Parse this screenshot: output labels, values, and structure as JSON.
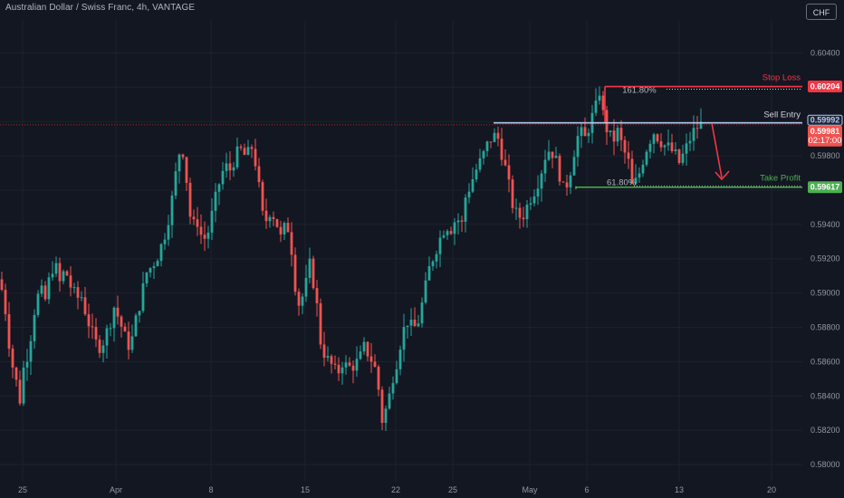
{
  "header": {
    "symbol_title": "Australian Dollar / Swiss Franc, 4h, VANTAGE",
    "currency_button": "CHF"
  },
  "colors": {
    "background": "#131722",
    "up": "#26a69a",
    "down": "#ef5350",
    "stop_loss": "#f23645",
    "sell_entry": "#b2c8f0",
    "take_profit": "#4caf50",
    "arrow": "#f23645"
  },
  "chart_data": {
    "type": "candlestick",
    "title": "Australian Dollar / Swiss Franc, 4h, VANTAGE",
    "ylim": [
      0.579,
      0.6055
    ],
    "y_ticks": [
      "0.60400",
      "0.60200",
      "0.60000",
      "0.59800",
      "0.59600",
      "0.59400",
      "0.59200",
      "0.59000",
      "0.58800",
      "0.58600",
      "0.58400",
      "0.58200",
      "0.58000"
    ],
    "x_ticks": [
      "25",
      "Apr",
      "8",
      "15",
      "22",
      "25",
      "May",
      "6",
      "13",
      "20"
    ],
    "grid": true,
    "price_path": [
      [
        0,
        0.5908
      ],
      [
        6,
        0.589
      ],
      [
        12,
        0.5862
      ],
      [
        18,
        0.5848
      ],
      [
        22,
        0.5838
      ],
      [
        26,
        0.5856
      ],
      [
        32,
        0.5868
      ],
      [
        38,
        0.589
      ],
      [
        44,
        0.5902
      ],
      [
        50,
        0.5896
      ],
      [
        56,
        0.5912
      ],
      [
        60,
        0.5918
      ],
      [
        66,
        0.5906
      ],
      [
        72,
        0.5914
      ],
      [
        78,
        0.5904
      ],
      [
        84,
        0.5897
      ],
      [
        90,
        0.5898
      ],
      [
        96,
        0.5886
      ],
      [
        102,
        0.5876
      ],
      [
        108,
        0.5868
      ],
      [
        114,
        0.5872
      ],
      [
        120,
        0.588
      ],
      [
        126,
        0.5892
      ],
      [
        132,
        0.5884
      ],
      [
        138,
        0.5874
      ],
      [
        144,
        0.5868
      ],
      [
        150,
        0.5884
      ],
      [
        156,
        0.5898
      ],
      [
        162,
        0.5912
      ],
      [
        168,
        0.5916
      ],
      [
        174,
        0.5922
      ],
      [
        180,
        0.593
      ],
      [
        186,
        0.5944
      ],
      [
        192,
        0.596
      ],
      [
        196,
        0.5978
      ],
      [
        200,
        0.5986
      ],
      [
        204,
        0.598
      ],
      [
        208,
        0.5952
      ],
      [
        212,
        0.5938
      ],
      [
        218,
        0.5942
      ],
      [
        224,
        0.593
      ],
      [
        230,
        0.5936
      ],
      [
        236,
        0.595
      ],
      [
        242,
        0.5964
      ],
      [
        248,
        0.5974
      ],
      [
        254,
        0.5972
      ],
      [
        260,
        0.598
      ],
      [
        266,
        0.5983
      ],
      [
        272,
        0.5979
      ],
      [
        278,
        0.5985
      ],
      [
        284,
        0.5972
      ],
      [
        288,
        0.595
      ],
      [
        292,
        0.594
      ],
      [
        298,
        0.5948
      ],
      [
        304,
        0.5944
      ],
      [
        310,
        0.5932
      ],
      [
        316,
        0.594
      ],
      [
        320,
        0.5936
      ],
      [
        326,
        0.5905
      ],
      [
        330,
        0.5894
      ],
      [
        336,
        0.59
      ],
      [
        342,
        0.5916
      ],
      [
        348,
        0.5902
      ],
      [
        354,
        0.5872
      ],
      [
        360,
        0.5862
      ],
      [
        366,
        0.5858
      ],
      [
        372,
        0.5852
      ],
      [
        378,
        0.586
      ],
      [
        384,
        0.5856
      ],
      [
        390,
        0.5858
      ],
      [
        396,
        0.586
      ],
      [
        402,
        0.5868
      ],
      [
        408,
        0.5864
      ],
      [
        414,
        0.5856
      ],
      [
        418,
        0.5844
      ],
      [
        422,
        0.5826
      ],
      [
        426,
        0.5832
      ],
      [
        430,
        0.584
      ],
      [
        434,
        0.5852
      ],
      [
        438,
        0.586
      ],
      [
        444,
        0.5876
      ],
      [
        450,
        0.5884
      ],
      [
        456,
        0.5878
      ],
      [
        462,
        0.5884
      ],
      [
        468,
        0.5898
      ],
      [
        474,
        0.5914
      ],
      [
        480,
        0.5924
      ],
      [
        486,
        0.5932
      ],
      [
        492,
        0.594
      ],
      [
        498,
        0.5938
      ],
      [
        504,
        0.5944
      ],
      [
        510,
        0.594
      ],
      [
        514,
        0.5956
      ],
      [
        520,
        0.5964
      ],
      [
        526,
        0.5972
      ],
      [
        532,
        0.5978
      ],
      [
        538,
        0.5986
      ],
      [
        544,
        0.5992
      ],
      [
        550,
        0.599
      ],
      [
        556,
        0.5978
      ],
      [
        562,
        0.5962
      ],
      [
        566,
        0.5952
      ],
      [
        570,
        0.5946
      ],
      [
        576,
        0.5944
      ],
      [
        580,
        0.5948
      ],
      [
        586,
        0.5956
      ],
      [
        592,
        0.5962
      ],
      [
        598,
        0.5972
      ],
      [
        604,
        0.5984
      ],
      [
        610,
        0.5982
      ],
      [
        616,
        0.5974
      ],
      [
        622,
        0.596
      ],
      [
        628,
        0.5966
      ],
      [
        632,
        0.5978
      ],
      [
        636,
        0.5988
      ],
      [
        640,
        0.5994
      ],
      [
        646,
        0.599
      ],
      [
        652,
        0.6
      ],
      [
        658,
        0.6008
      ],
      [
        662,
        0.6018
      ],
      [
        666,
        0.6004
      ],
      [
        670,
        0.5996
      ],
      [
        676,
        0.5988
      ],
      [
        682,
        0.5994
      ],
      [
        688,
        0.5984
      ],
      [
        694,
        0.5976
      ],
      [
        698,
        0.5962
      ],
      [
        704,
        0.5966
      ],
      [
        710,
        0.5978
      ],
      [
        716,
        0.5988
      ],
      [
        722,
        0.5994
      ],
      [
        728,
        0.599
      ],
      [
        734,
        0.5986
      ],
      [
        740,
        0.5984
      ],
      [
        746,
        0.598
      ],
      [
        750,
        0.5976
      ],
      [
        756,
        0.5982
      ],
      [
        762,
        0.599
      ],
      [
        768,
        0.5996
      ],
      [
        774,
        0.5998
      ]
    ],
    "levels": {
      "stop_loss": {
        "label": "Stop Loss",
        "price": 0.60204,
        "tag": "0.60204"
      },
      "sell_entry": {
        "label": "Sell Entry",
        "price": 0.59992,
        "tag": "0.59992"
      },
      "take_profit": {
        "label": "Take Profit",
        "price": 0.59617,
        "tag": "0.59617"
      }
    },
    "fib_labels": {
      "upper": "161.80%",
      "lower": "61.80%"
    },
    "current_price": {
      "price": 0.59981,
      "tag": "0.59981",
      "countdown": "02:17:00"
    }
  }
}
